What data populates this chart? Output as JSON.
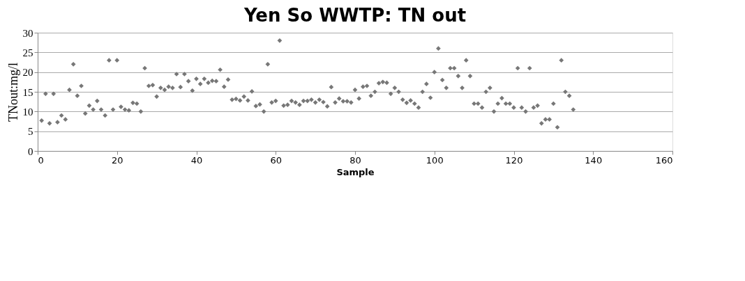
{
  "chart_data": {
    "type": "scatter",
    "title": "Yen So WWTP: TN out",
    "xlabel": "Sample",
    "ylabel": "TNout:mg/l",
    "x": [
      1,
      2,
      3,
      4,
      5,
      6,
      7,
      8,
      9,
      10,
      11,
      12,
      13,
      14,
      15,
      16,
      17,
      18,
      19,
      20,
      21,
      22,
      23,
      24,
      25,
      26,
      27,
      28,
      29,
      30,
      31,
      32,
      33,
      34,
      35,
      36,
      37,
      38,
      39,
      40,
      41,
      42,
      43,
      44,
      45,
      46,
      47,
      48,
      49,
      50,
      51,
      52,
      53,
      54,
      55,
      56,
      57,
      58,
      59,
      60,
      61,
      62,
      63,
      64,
      65,
      66,
      67,
      68,
      69,
      70,
      71,
      72,
      73,
      74,
      75,
      76,
      77,
      78,
      79,
      80,
      81,
      82,
      83,
      84,
      85,
      86,
      87,
      88,
      89,
      90,
      91,
      92,
      93,
      94,
      95,
      96,
      97,
      98,
      99,
      100,
      101,
      102,
      103,
      104,
      105,
      106,
      107,
      108,
      109,
      110,
      111,
      112,
      113,
      114,
      115,
      116,
      117,
      118,
      119,
      120,
      121,
      122,
      123,
      124,
      125,
      126,
      127,
      128,
      129,
      130,
      131,
      132,
      133,
      134,
      135
    ],
    "series": [
      {
        "color": "#777777",
        "values": [
          7.7,
          14.5,
          7,
          14.5,
          7.3,
          9,
          8,
          15.5,
          22,
          14,
          16.5,
          9.5,
          11.5,
          10.5,
          12.7,
          10.5,
          9,
          23,
          10.5,
          23,
          11.2,
          10.5,
          10.3,
          12.2,
          12,
          10,
          21,
          16.5,
          16.7,
          13.8,
          16,
          15.5,
          16.3,
          16,
          19.5,
          16.2,
          19.5,
          17.7,
          15.3,
          18.3,
          17,
          18.3,
          17.3,
          17.8,
          17.7,
          20.6,
          16.3,
          18.1,
          13,
          13.2,
          12.8,
          13.8,
          12.8,
          15.1,
          11.4,
          11.8,
          10,
          22,
          12.3,
          12.7,
          28,
          11.5,
          11.7,
          12.7,
          12.3,
          11.7,
          12.7,
          12.7,
          13,
          12.3,
          13,
          12.4,
          11.3,
          16.2,
          12.3,
          13.3,
          12.6,
          12.6,
          12.3,
          15.5,
          13.3,
          16.3,
          16.5,
          14,
          15,
          17.2,
          17.5,
          17.3,
          14.5,
          16,
          15,
          13,
          12.2,
          12.8,
          12,
          11,
          15,
          17,
          13.5,
          20,
          26,
          18,
          16,
          21,
          21,
          19,
          16,
          23,
          19,
          12,
          12,
          11,
          15,
          16,
          10,
          12,
          13.4,
          12,
          12,
          11,
          21,
          11,
          10,
          21,
          11,
          11.5,
          7,
          8,
          8,
          12,
          6,
          23,
          15,
          14,
          10.5
        ]
      }
    ],
    "xlim": [
      0,
      160
    ],
    "xticks": [
      0,
      20,
      40,
      60,
      80,
      100,
      120,
      140,
      160
    ],
    "ylim": [
      0,
      30
    ],
    "yticks": [
      0,
      5,
      10,
      15,
      20,
      25,
      30
    ],
    "grid": "y",
    "marker": "diamond",
    "legend": false
  }
}
